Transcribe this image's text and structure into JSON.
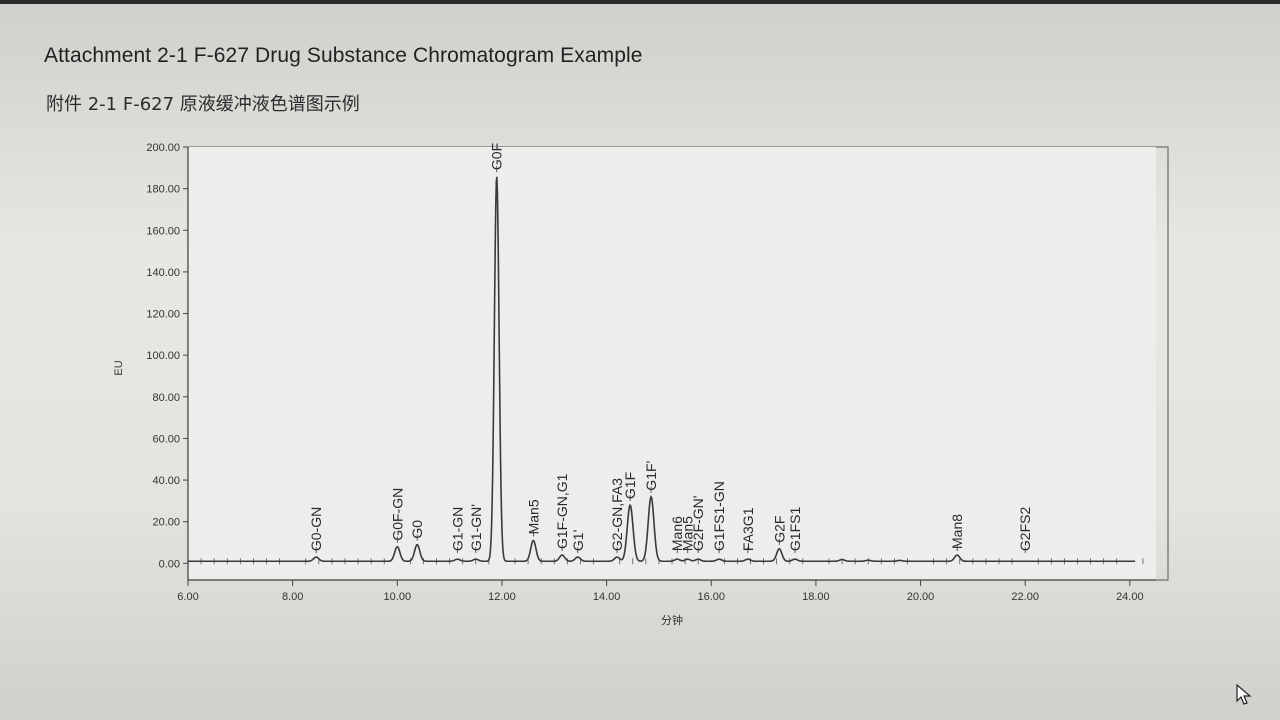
{
  "page": {
    "title_en": "Attachment 2-1 F-627 Drug Substance Chromatogram Example",
    "title_cn": "附件 2-1   F-627  原液缓冲液色谱图示例"
  },
  "chart_data": {
    "type": "line",
    "title": "",
    "xlabel": "分钟",
    "ylabel": "EU",
    "xlim": [
      6.0,
      24.5
    ],
    "ylim": [
      -8,
      200
    ],
    "x_ticks": [
      "6.00",
      "8.00",
      "10.00",
      "12.00",
      "14.00",
      "16.00",
      "18.00",
      "20.00",
      "22.00",
      "24.00"
    ],
    "y_ticks": [
      "0.00",
      "20.00",
      "40.00",
      "60.00",
      "80.00",
      "100.00",
      "120.00",
      "140.00",
      "160.00",
      "180.00",
      "200.00"
    ],
    "baseline": 1,
    "peaks": [
      {
        "label": "G0-GN",
        "x": 8.45,
        "y": 3
      },
      {
        "label": "G0F-GN",
        "x": 10.0,
        "y": 8
      },
      {
        "label": "G0",
        "x": 10.38,
        "y": 9
      },
      {
        "label": "G1-GN",
        "x": 11.15,
        "y": 2
      },
      {
        "label": "G1-GN'",
        "x": 11.5,
        "y": 2
      },
      {
        "label": "G0F",
        "x": 11.9,
        "y": 186
      },
      {
        "label": "Man5",
        "x": 12.6,
        "y": 11
      },
      {
        "label": "G1F-GN,G1",
        "x": 13.15,
        "y": 4
      },
      {
        "label": "G1'",
        "x": 13.45,
        "y": 3
      },
      {
        "label": "G2-GN,FA3",
        "x": 14.2,
        "y": 3
      },
      {
        "label": "G1F",
        "x": 14.45,
        "y": 28
      },
      {
        "label": "G1F'",
        "x": 14.85,
        "y": 32
      },
      {
        "label": "Man6",
        "x": 15.35,
        "y": 2
      },
      {
        "label": "Man5",
        "x": 15.55,
        "y": 2
      },
      {
        "label": "G2F-GN'",
        "x": 15.75,
        "y": 2
      },
      {
        "label": "G1FS1-GN",
        "x": 16.15,
        "y": 2
      },
      {
        "label": "FA3G1",
        "x": 16.7,
        "y": 2
      },
      {
        "label": "G2F",
        "x": 17.3,
        "y": 7
      },
      {
        "label": "G1FS1",
        "x": 17.6,
        "y": 2
      },
      {
        "label": "Man8",
        "x": 20.7,
        "y": 4
      },
      {
        "label": "G2FS2",
        "x": 22.0,
        "y": 1
      }
    ],
    "extra_bumps": [
      {
        "x": 18.5,
        "y": 1.8
      },
      {
        "x": 19.0,
        "y": 1.5
      },
      {
        "x": 19.6,
        "y": 1.4
      }
    ]
  },
  "colors": {
    "trace": "#3a3a3a",
    "axis": "#444444",
    "plot_bg": "#ededeb",
    "plot_border": "#6a6a6a"
  },
  "icons": {
    "cursor": "mouse-pointer-icon"
  }
}
